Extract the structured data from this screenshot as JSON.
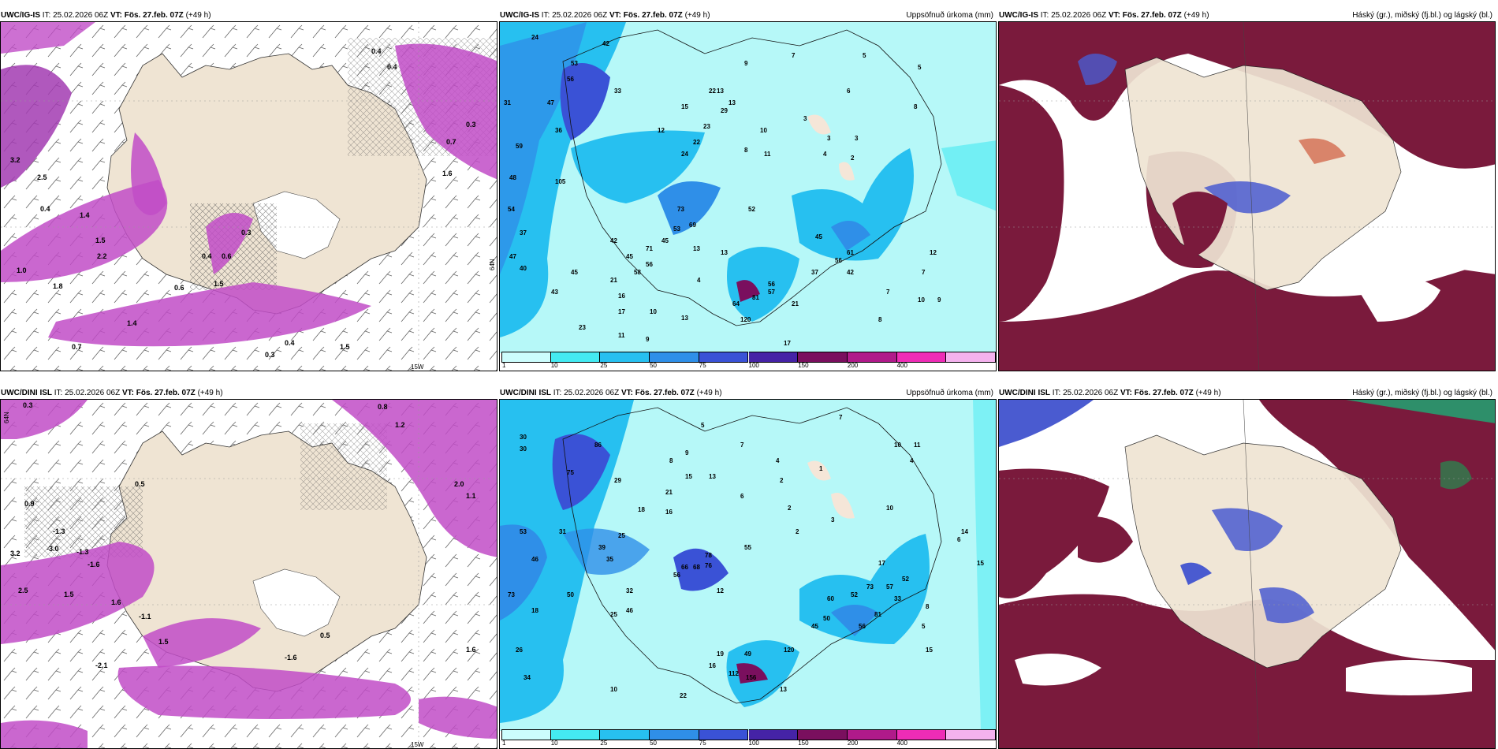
{
  "panels": [
    {
      "id": "p1",
      "model": "UWC/IG-IS",
      "it_label": "IT:",
      "it": "25.02.2026 06Z",
      "vt_label": "VT:",
      "vt": "Fös. 27.feb. 07Z",
      "lead": "(+49 h)",
      "right_title": ""
    },
    {
      "id": "p2",
      "model": "UWC/IG-IS",
      "it_label": "IT:",
      "it": "25.02.2026 06Z",
      "vt_label": "VT:",
      "vt": "Fös. 27.feb. 07Z",
      "lead": "(+49 h)",
      "right_title": "Uppsöfnuð úrkoma (mm)"
    },
    {
      "id": "p3",
      "model": "UWC/IG-IS",
      "it_label": "IT:",
      "it": "25.02.2026 06Z",
      "vt_label": "VT:",
      "vt": "Fös. 27.feb. 07Z",
      "lead": "(+49 h)",
      "right_title": "Háský (gr.), miðský (fj.bl.) og lágský (bl.)"
    },
    {
      "id": "p4",
      "model": "UWC/DINI ISL",
      "it_label": "IT:",
      "it": "25.02.2026 06Z",
      "vt_label": "VT:",
      "vt": "Fös. 27.feb. 07Z",
      "lead": "(+49 h)",
      "right_title": ""
    },
    {
      "id": "p5",
      "model": "UWC/DINI ISL",
      "it_label": "IT:",
      "it": "25.02.2026 06Z",
      "vt_label": "VT:",
      "vt": "Fös. 27.feb. 07Z",
      "lead": "(+49 h)",
      "right_title": "Uppsöfnuð úrkoma (mm)"
    },
    {
      "id": "p6",
      "model": "UWC/DINI ISL",
      "it_label": "IT:",
      "it": "25.02.2026 06Z",
      "vt_label": "VT:",
      "vt": "Fös. 27.feb. 07Z",
      "lead": "(+49 h)",
      "right_title": "Háský (gr.), miðský (fj.bl.) og lágský (bl.)"
    }
  ],
  "colorbar": {
    "ticks": [
      "1",
      "10",
      "25",
      "50",
      "75",
      "100",
      "150",
      "200",
      "400"
    ],
    "colors": [
      "#ccfdfd",
      "#44eaf2",
      "#27c0f0",
      "#2f8fe8",
      "#3a52d6",
      "#4523a6",
      "#7a0f5e",
      "#b01a8a",
      "#ee2cb6",
      "#f4b2ee"
    ]
  },
  "map_labels": {
    "lon_15w": "15W",
    "lat_64n": "64N",
    "p1_values": [
      "0.4",
      "0.4",
      "0.3",
      "0.7",
      "1.6",
      "3.2",
      "2.5",
      "1.0",
      "1.8",
      "0.4",
      "1.5",
      "2.2",
      "1.4",
      "0.6",
      "0.3",
      "0.4",
      "0.6",
      "1.5",
      "1.4",
      "0.7",
      "0.3",
      "0.4",
      "1.5"
    ],
    "p4_values": [
      "0.3",
      "0.8",
      "1.2",
      "0.9",
      "0.5",
      "2.0",
      "1.1",
      "-1.3",
      "-3.0",
      "-1.3",
      "-1.6",
      "3.2",
      "2.5",
      "1.5",
      "1.6",
      "-1.1",
      "-1.6",
      "0.5",
      "1.6",
      "1.5",
      "-2.1"
    ],
    "p2_values": [
      "24",
      "42",
      "53",
      "56",
      "33",
      "31",
      "47",
      "36",
      "59",
      "48",
      "105",
      "54",
      "37",
      "47",
      "40",
      "43",
      "45",
      "42",
      "21",
      "16",
      "17",
      "10",
      "23",
      "11",
      "9",
      "12",
      "22",
      "23",
      "13",
      "15",
      "13",
      "22",
      "29",
      "24",
      "8",
      "10",
      "9",
      "7",
      "5",
      "6",
      "5",
      "3",
      "3",
      "3",
      "2",
      "4",
      "8",
      "11",
      "73",
      "69",
      "53",
      "45",
      "13",
      "52",
      "58",
      "71",
      "56",
      "45",
      "13",
      "37",
      "45",
      "56",
      "61",
      "42",
      "4",
      "7",
      "10",
      "12",
      "8",
      "7",
      "9",
      "17",
      "21",
      "56",
      "81",
      "64",
      "120",
      "57",
      "13"
    ],
    "p5_values": [
      "30",
      "30",
      "53",
      "73",
      "75",
      "86",
      "46",
      "29",
      "21",
      "16",
      "18",
      "25",
      "15",
      "13",
      "5",
      "7",
      "8",
      "9",
      "4",
      "6",
      "2",
      "2",
      "1",
      "3",
      "2",
      "7",
      "10",
      "11",
      "10",
      "14",
      "15",
      "17",
      "8",
      "5",
      "55",
      "66",
      "68",
      "78",
      "76",
      "56",
      "12",
      "19",
      "49",
      "16",
      "112",
      "156",
      "120",
      "45",
      "52",
      "57",
      "56",
      "33",
      "52",
      "73",
      "81",
      "60",
      "50",
      "31",
      "26",
      "39",
      "35",
      "25",
      "46",
      "34",
      "32",
      "18",
      "50",
      "10",
      "22",
      "13",
      "4",
      "15",
      "6"
    ]
  }
}
